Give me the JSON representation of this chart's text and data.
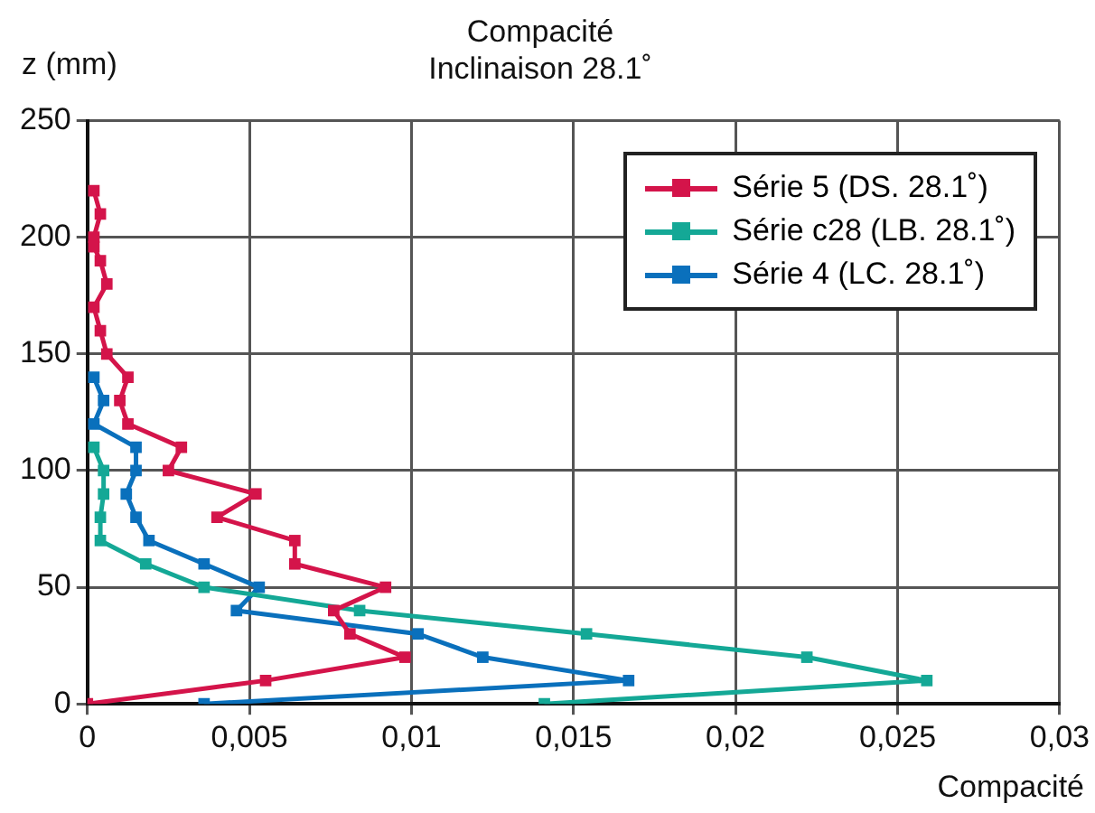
{
  "chart_data": {
    "type": "line",
    "title": [
      "Compacité",
      "Inclinaison 28.1˚"
    ],
    "xlabel": "Compacité",
    "ylabel": "z (mm)",
    "xlim": [
      0,
      0.03
    ],
    "xticks": [
      {
        "value": 0,
        "label": "0"
      },
      {
        "value": 0.005,
        "label": "0,005"
      },
      {
        "value": 0.01,
        "label": "0,01"
      },
      {
        "value": 0.015,
        "label": "0,015"
      },
      {
        "value": 0.02,
        "label": "0,02"
      },
      {
        "value": 0.025,
        "label": "0,025"
      },
      {
        "value": 0.03,
        "label": "0,03"
      }
    ],
    "ylim": [
      0,
      250
    ],
    "yticks": [
      0,
      50,
      100,
      150,
      200,
      250
    ],
    "grid": true,
    "legend": "top right",
    "marker": "square",
    "line_style": "solid",
    "series": [
      {
        "name": "Série 5 (DS. 28.1˚)",
        "color": "#d4144a",
        "x": [
          0,
          0.0055,
          0.0098,
          0.0081,
          0.0076,
          0.0092,
          0.0064,
          0.0064,
          0.004,
          0.0052,
          0.0025,
          0.0029,
          0.00125,
          0.001,
          0.00125,
          0.0006,
          0.0004,
          0.0002,
          0.0006,
          0.0004,
          0.0002,
          0.0002,
          0.0004,
          0.0002
        ],
        "values": [
          0,
          10,
          20,
          30,
          40,
          50,
          60,
          70,
          80,
          90,
          100,
          110,
          120,
          130,
          140,
          150,
          160,
          170,
          180,
          190,
          196,
          200,
          210,
          220
        ]
      },
      {
        "name": "Série c28 (LB. 28.1˚)",
        "color": "#14a896",
        "x": [
          0.0141,
          0.0259,
          0.0222,
          0.0154,
          0.0084,
          0.0036,
          0.0018,
          0.0004,
          0.0004,
          0.0005,
          0.0005,
          0.0002
        ],
        "values": [
          0,
          10,
          20,
          30,
          40,
          50,
          60,
          70,
          80,
          90,
          100,
          110
        ]
      },
      {
        "name": "Série 4 (LC. 28.1˚)",
        "color": "#0a70bc",
        "x": [
          0.0036,
          0.0167,
          0.0122,
          0.0102,
          0.0046,
          0.0053,
          0.0036,
          0.0019,
          0.0015,
          0.0012,
          0.0015,
          0.0015,
          0.0002,
          0.0005,
          0.0002
        ],
        "values": [
          0,
          10,
          20,
          30,
          40,
          50,
          60,
          70,
          80,
          90,
          100,
          110,
          120,
          130,
          140
        ]
      }
    ]
  }
}
